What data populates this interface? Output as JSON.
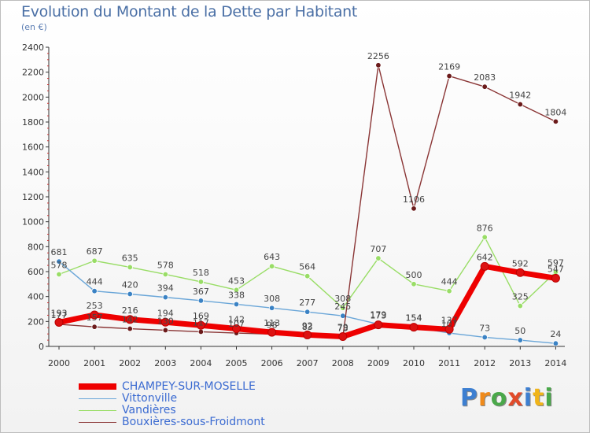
{
  "header": {
    "title": "Evolution du Montant de la Dette par Habitant",
    "unit": "(en €)"
  },
  "brand": {
    "text": "Proxiti",
    "colors": [
      "#3d7fd1",
      "#f08a1a",
      "#4aa84a",
      "#e14b2a",
      "#3d7fd1",
      "#f0b41a",
      "#4aa84a"
    ]
  },
  "chart_data": {
    "type": "line",
    "title": "Evolution du Montant de la Dette par Habitant",
    "ylabel": "(en €)",
    "xlabel": "",
    "ylim": [
      0,
      2400
    ],
    "yticks": [
      0,
      200,
      400,
      600,
      800,
      1000,
      1200,
      1400,
      1600,
      1800,
      2000,
      2200,
      2400
    ],
    "grid": false,
    "legend_position": "bottom-left",
    "categories": [
      "2000",
      "2001",
      "2002",
      "2003",
      "2004",
      "2005",
      "2006",
      "2007",
      "2008",
      "2009",
      "2010",
      "2011",
      "2012",
      "2013",
      "2014"
    ],
    "series": [
      {
        "name": "Vandières",
        "color": "#99dd66",
        "line_color": "#99dd66",
        "values": [
          578,
          687,
          635,
          578,
          518,
          453,
          643,
          564,
          308,
          707,
          500,
          444,
          876,
          325,
          597
        ],
        "labels": [
          "578",
          "687",
          "635",
          "578",
          "518",
          "453",
          "643",
          "564",
          "308",
          "707",
          "500",
          "444",
          "876",
          "325",
          "597"
        ]
      },
      {
        "name": "Vittonville",
        "color": "#3a82c4",
        "line_color": "#6aa6d8",
        "values": [
          681,
          444,
          420,
          394,
          367,
          338,
          308,
          277,
          245,
          179,
          154,
          107,
          73,
          50,
          24
        ],
        "labels": [
          "681",
          "444",
          "420",
          "394",
          "367",
          "338",
          "308",
          "277",
          "245",
          "179",
          "154",
          "107",
          "73",
          "50",
          "24"
        ]
      },
      {
        "name": "Bouxières-sous-Froidmont",
        "color": "#6b1a1a",
        "line_color": "#8a3535",
        "values": [
          177,
          157,
          142,
          130,
          117,
          107,
          98,
          83,
          73,
          2256,
          1106,
          2169,
          2083,
          1942,
          1804
        ],
        "labels": [
          "177",
          "157",
          "142",
          "130",
          "117",
          "107",
          "98",
          "83",
          "73",
          "2256",
          "1106",
          "2169",
          "2083",
          "1942",
          "1804"
        ]
      },
      {
        "name": "CHAMPEY-SUR-MOSELLE",
        "color": "#dd1111",
        "line_color": "#ee0000",
        "values": [
          193,
          253,
          216,
          194,
          169,
          142,
          113,
          92,
          79,
          173,
          154,
          137,
          642,
          592,
          547
        ],
        "labels": [
          "193",
          "253",
          "216",
          "194",
          "169",
          "142",
          "113",
          "92",
          "79",
          "173",
          "154",
          "137",
          "642",
          "592",
          "547"
        ]
      }
    ],
    "legend": [
      {
        "name": "CHAMPEY-SUR-MOSELLE",
        "color": "#ee0000",
        "thickness": 8
      },
      {
        "name": "Vittonville",
        "color": "#6aa6d8",
        "thickness": 1
      },
      {
        "name": "Vandières",
        "color": "#99dd66",
        "thickness": 1
      },
      {
        "name": "Bouxières-sous-Froidmont",
        "color": "#8a3535",
        "thickness": 1
      }
    ]
  }
}
